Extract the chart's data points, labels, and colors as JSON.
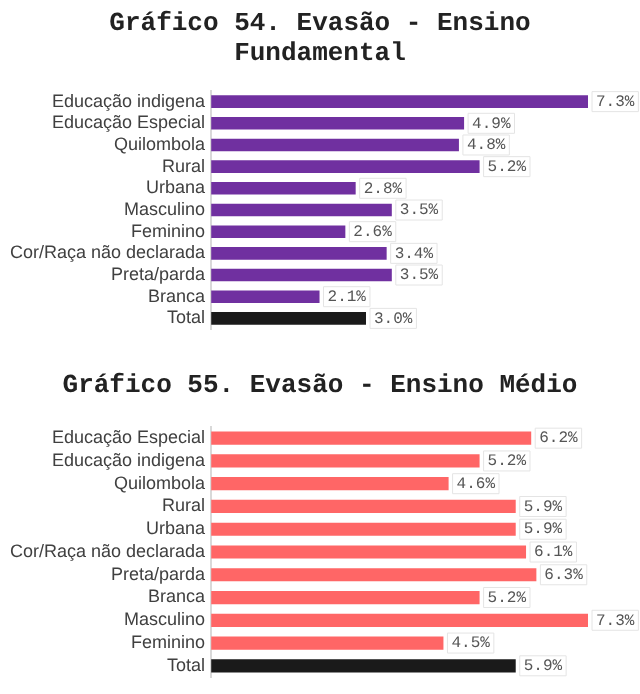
{
  "chart_data": [
    {
      "type": "bar",
      "title": "Gráfico 54. Evasão - Ensino Fundamental",
      "orientation": "horizontal",
      "categories": [
        "Educação indigena",
        "Educação Especial",
        "Quilombola",
        "Rural",
        "Urbana",
        "Masculino",
        "Feminino",
        "Cor/Raça não declarada",
        "Preta/parda",
        "Branca",
        "Total"
      ],
      "values": [
        7.3,
        4.9,
        4.8,
        5.2,
        2.8,
        3.5,
        2.6,
        3.4,
        3.5,
        2.1,
        3.0
      ],
      "colors": [
        "#7030a0",
        "#7030a0",
        "#7030a0",
        "#7030a0",
        "#7030a0",
        "#7030a0",
        "#7030a0",
        "#7030a0",
        "#7030a0",
        "#7030a0",
        "#1a1a1a"
      ],
      "value_labels": [
        "7.3%",
        "4.9%",
        "4.8%",
        "5.2%",
        "2.8%",
        "3.5%",
        "2.6%",
        "3.4%",
        "3.5%",
        "2.1%",
        "3.0%"
      ],
      "grid": false,
      "legend": false,
      "tick_labels": "y"
    },
    {
      "type": "bar",
      "title": "Gráfico 55. Evasão - Ensino Médio",
      "orientation": "horizontal",
      "categories": [
        "Educação Especial",
        "Educação indigena",
        "Quilombola",
        "Rural",
        "Urbana",
        "Cor/Raça não declarada",
        "Preta/parda",
        "Branca",
        "Masculino",
        "Feminino",
        "Total"
      ],
      "values": [
        6.2,
        5.2,
        4.6,
        5.9,
        5.9,
        6.1,
        6.3,
        5.2,
        7.3,
        4.5,
        5.9
      ],
      "colors": [
        "#ff6666",
        "#ff6666",
        "#ff6666",
        "#ff6666",
        "#ff6666",
        "#ff6666",
        "#ff6666",
        "#ff6666",
        "#ff6666",
        "#ff6666",
        "#1a1a1a"
      ],
      "value_labels": [
        "6.2%",
        "5.2%",
        "4.6%",
        "5.9%",
        "5.9%",
        "6.1%",
        "6.3%",
        "5.2%",
        "7.3%",
        "4.5%",
        "5.9%"
      ],
      "grid": false,
      "legend": false,
      "tick_labels": "y"
    }
  ]
}
